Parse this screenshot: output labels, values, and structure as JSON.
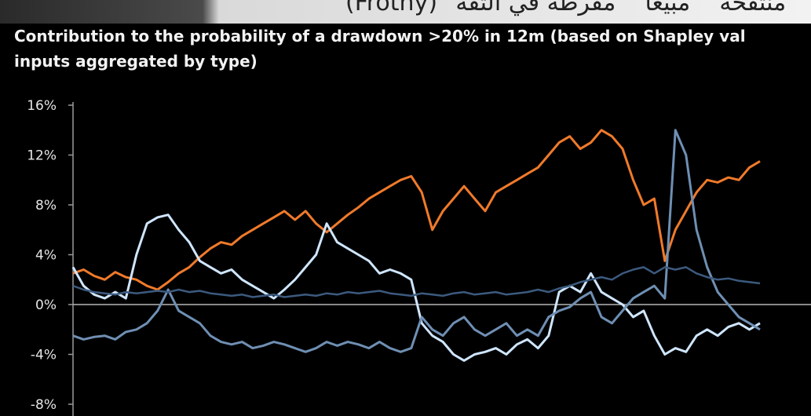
{
  "overlay_caption": "\"منتفخة\" \"مبيعا\" \"مفرطة في الثقة\" (Frothy)",
  "chart_data": {
    "type": "line",
    "title_line1": "Contribution to the probability of a drawdown >20% in 12m (based on Shapley val",
    "title_line2": "inputs aggregated by type)",
    "xlabel": "",
    "ylabel": "",
    "ylim": [
      -8,
      16
    ],
    "yticks": [
      "16%",
      "12%",
      "8%",
      "4%",
      "0%",
      "-4%",
      "-8%"
    ],
    "ytick_values": [
      16,
      12,
      8,
      4,
      0,
      -4,
      -8
    ],
    "grid": false,
    "zero_line": true,
    "x_count": 66,
    "series": [
      {
        "color": "#f07a2a",
        "values": [
          2.5,
          2.8,
          2.3,
          2.0,
          2.6,
          2.2,
          2.0,
          1.5,
          1.2,
          1.8,
          2.5,
          3.0,
          3.8,
          4.5,
          5.0,
          4.8,
          5.5,
          6.0,
          6.5,
          7.0,
          7.5,
          6.8,
          7.5,
          6.5,
          5.8,
          6.5,
          7.2,
          7.8,
          8.5,
          9.0,
          9.5,
          10.0,
          10.3,
          9.0,
          6.0,
          7.5,
          8.5,
          9.5,
          8.5,
          7.5,
          9.0,
          9.5,
          10.0,
          10.5,
          11.0,
          12.0,
          13.0,
          13.5,
          12.5,
          13.0,
          14.0,
          13.5,
          12.5,
          10.0,
          8.0,
          8.5,
          3.5,
          6.0,
          7.5,
          9.0,
          10.0,
          9.8,
          10.2,
          10.0,
          11.0,
          11.5
        ]
      },
      {
        "color": "#cfe6ff",
        "values": [
          3.0,
          1.5,
          0.8,
          0.5,
          1.0,
          0.5,
          4.0,
          6.5,
          7.0,
          7.2,
          6.0,
          5.0,
          3.5,
          3.0,
          2.5,
          2.8,
          2.0,
          1.5,
          1.0,
          0.5,
          1.2,
          2.0,
          3.0,
          4.0,
          6.5,
          5.0,
          4.5,
          4.0,
          3.5,
          2.5,
          2.8,
          2.5,
          2.0,
          -1.5,
          -2.5,
          -3.0,
          -4.0,
          -4.5,
          -4.0,
          -3.8,
          -3.5,
          -4.0,
          -3.2,
          -2.8,
          -3.5,
          -2.5,
          1.0,
          1.5,
          1.0,
          2.5,
          1.0,
          0.5,
          0.0,
          -1.0,
          -0.5,
          -2.5,
          -4.0,
          -3.5,
          -3.8,
          -2.5,
          -2.0,
          -2.5,
          -1.8,
          -1.5,
          -2.0,
          -1.5
        ]
      },
      {
        "color": "#6f8fb3",
        "values": [
          -2.5,
          -2.8,
          -2.6,
          -2.5,
          -2.8,
          -2.2,
          -2.0,
          -1.5,
          -0.5,
          1.2,
          -0.5,
          -1.0,
          -1.5,
          -2.5,
          -3.0,
          -3.2,
          -3.0,
          -3.5,
          -3.3,
          -3.0,
          -3.2,
          -3.5,
          -3.8,
          -3.5,
          -3.0,
          -3.3,
          -3.0,
          -3.2,
          -3.5,
          -3.0,
          -3.5,
          -3.8,
          -3.5,
          -1.0,
          -2.0,
          -2.5,
          -1.5,
          -1.0,
          -2.0,
          -2.5,
          -2.0,
          -1.5,
          -2.5,
          -2.0,
          -2.5,
          -1.0,
          -0.5,
          -0.2,
          0.5,
          1.0,
          -1.0,
          -1.5,
          -0.5,
          0.5,
          1.0,
          1.5,
          0.5,
          14.0,
          12.0,
          6.0,
          3.0,
          1.0,
          0.0,
          -1.0,
          -1.5,
          -2.0
        ]
      },
      {
        "color": "#3c5a7e",
        "values": [
          1.5,
          1.2,
          1.0,
          0.9,
          0.8,
          1.0,
          0.9,
          1.0,
          1.1,
          1.0,
          1.2,
          1.0,
          1.1,
          0.9,
          0.8,
          0.7,
          0.8,
          0.6,
          0.7,
          0.8,
          0.6,
          0.7,
          0.8,
          0.7,
          0.9,
          0.8,
          1.0,
          0.9,
          1.0,
          1.1,
          0.9,
          0.8,
          0.7,
          0.9,
          0.8,
          0.7,
          0.9,
          1.0,
          0.8,
          0.9,
          1.0,
          0.8,
          0.9,
          1.0,
          1.2,
          1.0,
          1.3,
          1.5,
          1.8,
          2.0,
          2.2,
          2.0,
          2.5,
          2.8,
          3.0,
          2.5,
          3.0,
          2.8,
          3.0,
          2.5,
          2.2,
          2.0,
          2.1,
          1.9,
          1.8,
          1.7
        ]
      }
    ]
  }
}
